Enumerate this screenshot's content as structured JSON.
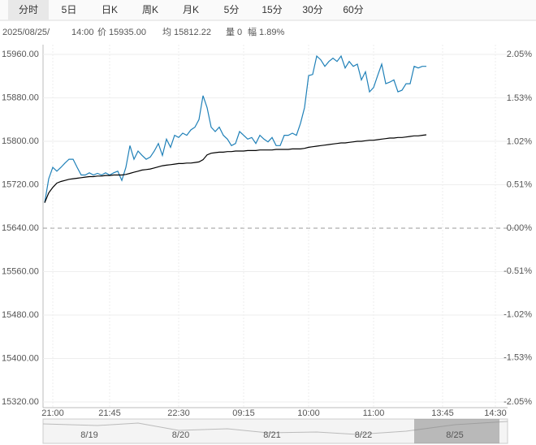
{
  "tabs": [
    "分时",
    "5日",
    "日K",
    "周K",
    "月K",
    "5分",
    "15分",
    "30分",
    "60分"
  ],
  "info": [
    "2025/08/25/",
    "14:00",
    "价 15935.00",
    "均 15812.22",
    "量 0",
    "幅 1.89%"
  ],
  "chart_data": {
    "type": "line",
    "x": [
      0,
      1,
      2,
      3,
      4,
      5,
      6,
      7,
      8,
      9,
      10,
      11,
      12,
      13,
      14,
      15,
      16,
      17,
      18,
      19,
      20,
      21,
      22,
      23,
      24,
      25,
      26,
      27,
      28,
      29,
      30,
      31,
      32,
      33,
      34,
      35,
      36,
      37,
      38,
      39,
      40,
      41,
      42,
      43,
      44,
      45,
      46,
      47,
      48,
      49,
      50,
      51,
      52,
      53,
      54,
      55,
      56,
      57,
      58,
      59,
      60,
      61,
      62,
      63,
      64,
      65,
      66,
      67,
      68,
      69,
      70,
      71,
      72,
      73,
      74,
      75,
      76,
      77,
      78,
      79,
      80,
      81,
      82,
      83,
      84,
      85,
      86,
      87,
      88,
      89,
      90,
      91,
      92,
      93,
      94
    ],
    "series": [
      {
        "color": "#1f80b8",
        "values": [
          15687,
          15731,
          15752,
          15745,
          15752,
          15760,
          15767,
          15767,
          15752,
          15738,
          15738,
          15742,
          15738,
          15741,
          15738,
          15742,
          15738,
          15742,
          15745,
          15728,
          15752,
          15792,
          15767,
          15782,
          15774,
          15767,
          15771,
          15782,
          15796,
          15774,
          15804,
          15789,
          15811,
          15807,
          15815,
          15811,
          15821,
          15826,
          15840,
          15884,
          15862,
          15826,
          15818,
          15826,
          15811,
          15804,
          15792,
          15796,
          15818,
          15811,
          15804,
          15807,
          15796,
          15811,
          15804,
          15799,
          15807,
          15792,
          15792,
          15811,
          15811,
          15815,
          15811,
          15833,
          15862,
          15921,
          15923,
          15957,
          15950,
          15938,
          15947,
          15953,
          15947,
          15957,
          15935,
          15947,
          15938,
          15942,
          15913,
          15928,
          15891,
          15899,
          15921,
          15942,
          15906,
          15909,
          15913,
          15891,
          15894,
          15906,
          15906,
          15938,
          15935,
          15938,
          15938
        ]
      },
      {
        "color": "#000000",
        "values": [
          15687,
          15705,
          15715,
          15723,
          15726,
          15728,
          15730,
          15731,
          15732,
          15733,
          15734,
          15735,
          15735,
          15736,
          15736,
          15737,
          15737,
          15738,
          15738,
          15738,
          15739,
          15741,
          15743,
          15745,
          15747,
          15748,
          15749,
          15751,
          15753,
          15755,
          15756,
          15757,
          15758,
          15759,
          15759,
          15760,
          15760,
          15761,
          15762,
          15766,
          15775,
          15778,
          15779,
          15780,
          15780,
          15781,
          15781,
          15782,
          15782,
          15782,
          15783,
          15783,
          15783,
          15784,
          15784,
          15784,
          15784,
          15785,
          15785,
          15785,
          15785,
          15786,
          15786,
          15786,
          15787,
          15789,
          15790,
          15791,
          15792,
          15793,
          15794,
          15795,
          15796,
          15797,
          15797,
          15798,
          15799,
          15800,
          15800,
          15801,
          15802,
          15802,
          15803,
          15804,
          15805,
          15806,
          15806,
          15807,
          15807,
          15808,
          15809,
          15810,
          15810,
          15811,
          15812
        ]
      }
    ],
    "xlim": [
      0,
      114
    ],
    "xticks": [
      {
        "value": 2,
        "label": "21:00"
      },
      {
        "value": 16,
        "label": "21:45"
      },
      {
        "value": 33,
        "label": "22:30"
      },
      {
        "value": 49,
        "label": "09:15"
      },
      {
        "value": 65,
        "label": "10:00"
      },
      {
        "value": 81,
        "label": "11:00"
      },
      {
        "value": 98,
        "label": "13:45"
      },
      {
        "value": 111,
        "label": "14:30"
      }
    ],
    "ylim": [
      15320,
      15960
    ],
    "yticks": [
      {
        "value": 15960,
        "label": "15960.00"
      },
      {
        "value": 15880,
        "label": "15880.00"
      },
      {
        "value": 15800,
        "label": "15800.00"
      },
      {
        "value": 15720,
        "label": "15720.00"
      },
      {
        "value": 15640,
        "label": "15640.00"
      },
      {
        "value": 15560,
        "label": "15560.00"
      },
      {
        "value": 15480,
        "label": "15480.00"
      },
      {
        "value": 15400,
        "label": "15400.00"
      },
      {
        "value": 15320,
        "label": "15320.00"
      }
    ],
    "y2lim": [
      -2.05,
      2.05
    ],
    "y2ticks": [
      {
        "value": 2.05,
        "label": "2.05%"
      },
      {
        "value": 1.53,
        "label": "1.53%"
      },
      {
        "value": 1.02,
        "label": "1.02%"
      },
      {
        "value": 0.51,
        "label": "0.51%"
      },
      {
        "value": 0,
        "label": "0.00%"
      },
      {
        "value": -0.51,
        "label": "-0.51%"
      },
      {
        "value": -1.02,
        "label": "-1.02%"
      },
      {
        "value": -1.53,
        "label": "-1.53%"
      },
      {
        "value": -2.05,
        "label": "-2.05%"
      }
    ],
    "base": 15640,
    "up_color": "#e00000",
    "down_color": "#009900",
    "flat_color": "#555555",
    "grid": true
  },
  "navigator": {
    "labels": [
      "8/19",
      "8/20",
      "8/21",
      "8/22",
      "8/25"
    ]
  }
}
